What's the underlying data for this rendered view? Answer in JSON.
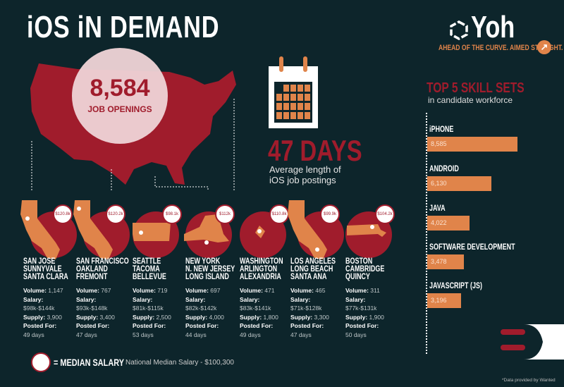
{
  "title": "iOS iN DEMAND",
  "brand": {
    "name": "Yoh",
    "tagline": "AHEAD OF THE CURVE. AIMED STRAIGHT.",
    "icon": "arrow-up-right-icon"
  },
  "job_openings": {
    "value": "8,584",
    "label": "JOB OPENINGS"
  },
  "posting_length": {
    "value": "47 DAYS",
    "line1": "Average length of",
    "line2": "iOS job postings"
  },
  "cities": [
    {
      "names": [
        "SAN JOSE",
        "SUNNYVALE",
        "SANTA CLARA"
      ],
      "state": "CA",
      "median": "$120.8k",
      "volume": "1,147",
      "salary": "$98k-$144k",
      "supply": "3,900",
      "posted": "49 days"
    },
    {
      "names": [
        "SAN FRANCISCO",
        "OAKLAND",
        "FREMONT"
      ],
      "state": "CA",
      "median": "$120.2k",
      "volume": "767",
      "salary": "$93k-$148k",
      "supply": "3,400",
      "posted": "47 days"
    },
    {
      "names": [
        "SEATTLE",
        "TACOMA",
        "BELLEVUE"
      ],
      "state": "WA",
      "median": "$98.1k",
      "volume": "719",
      "salary": "$81k-$115k",
      "supply": "2,500",
      "posted": "53 days"
    },
    {
      "names": [
        "NEW YORK",
        "N. NEW JERSEY",
        "LONG ISLAND"
      ],
      "state": "NY",
      "median": "$112k",
      "volume": "697",
      "salary": "$82k-$142k",
      "supply": "4,000",
      "posted": "44 days"
    },
    {
      "names": [
        "WASHINGTON",
        "ARLINGTON",
        "ALEXANDRIA"
      ],
      "state": "DC",
      "median": "$110.8k",
      "volume": "471",
      "salary": "$83k-$141k",
      "supply": "1,800",
      "posted": "49 days"
    },
    {
      "names": [
        "LOS ANGELES",
        "LONG BEACH",
        "SANTA ANA"
      ],
      "state": "CA",
      "median": "$99.9k",
      "volume": "465",
      "salary": "$71k-$128k",
      "supply": "3,300",
      "posted": "47 days"
    },
    {
      "names": [
        "BOSTON",
        "CAMBRIDGE",
        "QUINCY"
      ],
      "state": "MA",
      "median": "$104.2k",
      "volume": "311",
      "salary": "$77k-$131k",
      "supply": "1,900",
      "posted": "50 days"
    }
  ],
  "stat_labels": {
    "volume": "Volume:",
    "salary": "Salary:",
    "supply": "Supply:",
    "posted": "Posted For:"
  },
  "skills": {
    "title": "TOP 5 SKILL SETS",
    "subtitle": "in candidate workforce"
  },
  "chart_data": {
    "type": "bar",
    "orientation": "horizontal",
    "title": "TOP 5 SKILL SETS",
    "subtitle": "in candidate workforce",
    "categories": [
      "iPHONE",
      "ANDROID",
      "JAVA",
      "SOFTWARE DEVELOPMENT",
      "JAVASCRIPT (JS)"
    ],
    "values": [
      8585,
      6130,
      4022,
      3478,
      3196
    ],
    "labels": [
      "8,585",
      "6,130",
      "4,022",
      "3,478",
      "3,196"
    ],
    "color": "#e0844a"
  },
  "legend": {
    "label": "= MEDIAN SALARY",
    "national": "National Median Salary - $100,300"
  },
  "credit": "*Data provided by Wanted",
  "colors": {
    "background": "#0d252b",
    "red": "#a01c2c",
    "orange": "#e0844a"
  }
}
